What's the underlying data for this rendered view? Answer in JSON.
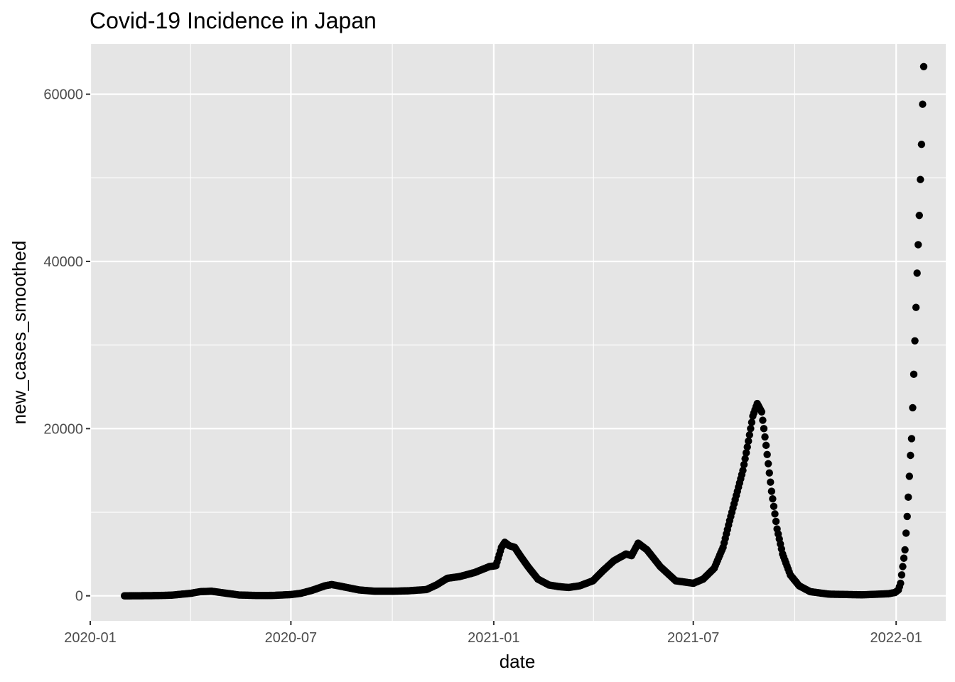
{
  "chart_data": {
    "type": "scatter",
    "title": "Covid-19 Incidence in Japan",
    "xlabel": "date",
    "ylabel": "new_cases_smoothed",
    "xlim": [
      "2020-01-01",
      "2022-02-15"
    ],
    "ylim": [
      -3000,
      66000
    ],
    "x_ticks": [
      "2020-01",
      "2020-07",
      "2021-01",
      "2021-07",
      "2022-01"
    ],
    "x_tick_dates": [
      "2020-01-01",
      "2020-07-01",
      "2021-01-01",
      "2021-07-01",
      "2022-01-01"
    ],
    "y_ticks": [
      0,
      20000,
      40000,
      60000
    ],
    "grid": true,
    "panel_background": "#e5e5e5",
    "grid_color": "#ffffff",
    "point_color": "#000000",
    "series": [
      {
        "points": [
          [
            "2020-02-01",
            0
          ],
          [
            "2020-03-01",
            30
          ],
          [
            "2020-03-15",
            80
          ],
          [
            "2020-04-01",
            300
          ],
          [
            "2020-04-10",
            500
          ],
          [
            "2020-04-20",
            550
          ],
          [
            "2020-05-01",
            350
          ],
          [
            "2020-05-15",
            100
          ],
          [
            "2020-06-01",
            40
          ],
          [
            "2020-06-15",
            50
          ],
          [
            "2020-07-01",
            150
          ],
          [
            "2020-07-10",
            300
          ],
          [
            "2020-07-20",
            650
          ],
          [
            "2020-08-01",
            1200
          ],
          [
            "2020-08-07",
            1350
          ],
          [
            "2020-08-15",
            1150
          ],
          [
            "2020-09-01",
            700
          ],
          [
            "2020-09-15",
            550
          ],
          [
            "2020-10-01",
            550
          ],
          [
            "2020-10-15",
            600
          ],
          [
            "2020-11-01",
            750
          ],
          [
            "2020-11-10",
            1300
          ],
          [
            "2020-11-20",
            2100
          ],
          [
            "2020-12-01",
            2300
          ],
          [
            "2020-12-15",
            2800
          ],
          [
            "2020-12-28",
            3500
          ],
          [
            "2021-01-03",
            3600
          ],
          [
            "2021-01-08",
            5800
          ],
          [
            "2021-01-11",
            6400
          ],
          [
            "2021-01-15",
            6000
          ],
          [
            "2021-01-20",
            5800
          ],
          [
            "2021-01-25",
            4800
          ],
          [
            "2021-02-01",
            3500
          ],
          [
            "2021-02-10",
            2000
          ],
          [
            "2021-02-20",
            1300
          ],
          [
            "2021-03-01",
            1100
          ],
          [
            "2021-03-10",
            1000
          ],
          [
            "2021-03-20",
            1200
          ],
          [
            "2021-04-01",
            1800
          ],
          [
            "2021-04-10",
            3000
          ],
          [
            "2021-04-20",
            4200
          ],
          [
            "2021-05-01",
            5000
          ],
          [
            "2021-05-06",
            4800
          ],
          [
            "2021-05-12",
            6300
          ],
          [
            "2021-05-20",
            5500
          ],
          [
            "2021-06-01",
            3500
          ],
          [
            "2021-06-15",
            1800
          ],
          [
            "2021-07-01",
            1500
          ],
          [
            "2021-07-10",
            2000
          ],
          [
            "2021-07-20",
            3300
          ],
          [
            "2021-07-28",
            5800
          ],
          [
            "2021-08-03",
            9000
          ],
          [
            "2021-08-10",
            12500
          ],
          [
            "2021-08-15",
            15000
          ],
          [
            "2021-08-20",
            18500
          ],
          [
            "2021-08-24",
            21500
          ],
          [
            "2021-08-28",
            23000
          ],
          [
            "2021-09-01",
            22000
          ],
          [
            "2021-09-05",
            18000
          ],
          [
            "2021-09-10",
            12500
          ],
          [
            "2021-09-15",
            8000
          ],
          [
            "2021-09-20",
            5000
          ],
          [
            "2021-09-27",
            2500
          ],
          [
            "2021-10-05",
            1200
          ],
          [
            "2021-10-15",
            500
          ],
          [
            "2021-11-01",
            200
          ],
          [
            "2021-12-01",
            120
          ],
          [
            "2021-12-25",
            250
          ],
          [
            "2021-12-31",
            400
          ],
          [
            "2022-01-03",
            700
          ],
          [
            "2022-01-05",
            1500
          ],
          [
            "2022-01-07",
            3500
          ],
          [
            "2022-01-09",
            5500
          ],
          [
            "2022-01-10",
            7500
          ],
          [
            "2022-01-11",
            9500
          ],
          [
            "2022-01-12",
            11800
          ],
          [
            "2022-01-13",
            14300
          ],
          [
            "2022-01-14",
            16800
          ],
          [
            "2022-01-15",
            18800
          ],
          [
            "2022-01-16",
            22500
          ],
          [
            "2022-01-17",
            26500
          ],
          [
            "2022-01-18",
            30500
          ],
          [
            "2022-01-19",
            34500
          ],
          [
            "2022-01-20",
            38600
          ],
          [
            "2022-01-21",
            42000
          ],
          [
            "2022-01-22",
            45500
          ],
          [
            "2022-01-23",
            49800
          ],
          [
            "2022-01-24",
            54000
          ],
          [
            "2022-01-25",
            58800
          ],
          [
            "2022-01-26",
            63300
          ]
        ],
        "dense_until": "2022-01-12"
      }
    ]
  }
}
